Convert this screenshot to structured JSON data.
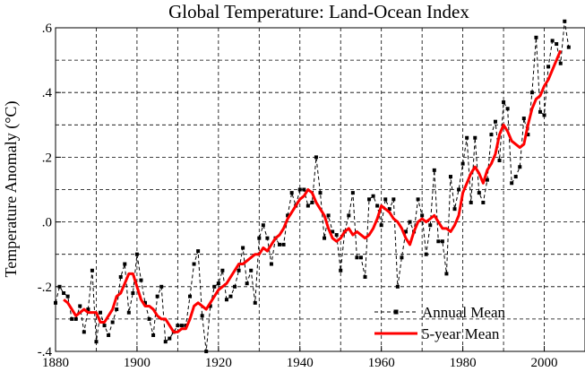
{
  "chart_data": {
    "type": "line",
    "title": "Global Temperature: Land-Ocean Index",
    "xlabel": "",
    "ylabel": "Temperature Anomaly (°C)",
    "xlim": [
      1880,
      2010
    ],
    "ylim": [
      -0.4,
      0.6
    ],
    "x_ticks": [
      1880,
      1900,
      1920,
      1940,
      1960,
      1980,
      2000
    ],
    "y_ticks": [
      -0.4,
      -0.2,
      0.0,
      0.2,
      0.4,
      0.6
    ],
    "x_tick_labels": [
      "1880",
      "1900",
      "1920",
      "1940",
      "1960",
      "1980",
      "2000"
    ],
    "y_tick_labels": [
      "-.4",
      "-.2",
      ".0",
      ".2",
      ".4",
      ".6"
    ],
    "grid": true,
    "legend_position": "bottom-right",
    "series": [
      {
        "name": "Annual Mean",
        "style": "dashed-with-square-markers",
        "color": "#000000",
        "x": [
          1880,
          1881,
          1882,
          1883,
          1884,
          1885,
          1886,
          1887,
          1888,
          1889,
          1890,
          1891,
          1892,
          1893,
          1894,
          1895,
          1896,
          1897,
          1898,
          1899,
          1900,
          1901,
          1902,
          1903,
          1904,
          1905,
          1906,
          1907,
          1908,
          1909,
          1910,
          1911,
          1912,
          1913,
          1914,
          1915,
          1916,
          1917,
          1918,
          1919,
          1920,
          1921,
          1922,
          1923,
          1924,
          1925,
          1926,
          1927,
          1928,
          1929,
          1930,
          1931,
          1932,
          1933,
          1934,
          1935,
          1936,
          1937,
          1938,
          1939,
          1940,
          1941,
          1942,
          1943,
          1944,
          1945,
          1946,
          1947,
          1948,
          1949,
          1950,
          1951,
          1952,
          1953,
          1954,
          1955,
          1956,
          1957,
          1958,
          1959,
          1960,
          1961,
          1962,
          1963,
          1964,
          1965,
          1966,
          1967,
          1968,
          1969,
          1970,
          1971,
          1972,
          1973,
          1974,
          1975,
          1976,
          1977,
          1978,
          1979,
          1980,
          1981,
          1982,
          1983,
          1984,
          1985,
          1986,
          1987,
          1988,
          1989,
          1990,
          1991,
          1992,
          1993,
          1994,
          1995,
          1996,
          1997,
          1998,
          1999,
          2000,
          2001,
          2002,
          2003,
          2004,
          2005,
          2006
        ],
        "values": [
          -0.25,
          -0.2,
          -0.22,
          -0.23,
          -0.3,
          -0.3,
          -0.26,
          -0.34,
          -0.27,
          -0.15,
          -0.37,
          -0.28,
          -0.32,
          -0.35,
          -0.31,
          -0.27,
          -0.17,
          -0.13,
          -0.28,
          -0.22,
          -0.1,
          -0.18,
          -0.25,
          -0.3,
          -0.35,
          -0.23,
          -0.2,
          -0.37,
          -0.36,
          -0.34,
          -0.32,
          -0.32,
          -0.32,
          -0.23,
          -0.13,
          -0.09,
          -0.29,
          -0.4,
          -0.26,
          -0.2,
          -0.19,
          -0.15,
          -0.24,
          -0.23,
          -0.2,
          -0.15,
          -0.08,
          -0.19,
          -0.15,
          -0.25,
          -0.05,
          -0.01,
          -0.05,
          -0.13,
          -0.05,
          -0.07,
          -0.07,
          0.02,
          0.09,
          0.05,
          0.1,
          0.1,
          0.05,
          0.06,
          0.2,
          0.09,
          -0.05,
          0.02,
          -0.03,
          -0.04,
          -0.15,
          -0.03,
          0.02,
          0.09,
          -0.11,
          -0.11,
          -0.17,
          0.07,
          0.08,
          0.05,
          -0.01,
          0.07,
          0.04,
          0.07,
          -0.2,
          -0.11,
          -0.03,
          0.0,
          -0.03,
          0.07,
          0.02,
          -0.1,
          -0.01,
          0.16,
          -0.06,
          -0.06,
          -0.16,
          0.14,
          0.04,
          0.1,
          0.18,
          0.26,
          0.06,
          0.26,
          0.09,
          0.06,
          0.13,
          0.27,
          0.31,
          0.19,
          0.37,
          0.35,
          0.12,
          0.14,
          0.17,
          0.32,
          0.27,
          0.4,
          0.57,
          0.34,
          0.33,
          0.48,
          0.56,
          0.55,
          0.49,
          0.62,
          0.54
        ]
      },
      {
        "name": "5-year Mean",
        "style": "thick-solid",
        "color": "#ff0000",
        "x": [
          1882,
          1883,
          1884,
          1885,
          1886,
          1887,
          1888,
          1889,
          1890,
          1891,
          1892,
          1893,
          1894,
          1895,
          1896,
          1897,
          1898,
          1899,
          1900,
          1901,
          1902,
          1903,
          1904,
          1905,
          1906,
          1907,
          1908,
          1909,
          1910,
          1911,
          1912,
          1913,
          1914,
          1915,
          1916,
          1917,
          1918,
          1919,
          1920,
          1921,
          1922,
          1923,
          1924,
          1925,
          1926,
          1927,
          1928,
          1929,
          1930,
          1931,
          1932,
          1933,
          1934,
          1935,
          1936,
          1937,
          1938,
          1939,
          1940,
          1941,
          1942,
          1943,
          1944,
          1945,
          1946,
          1947,
          1948,
          1949,
          1950,
          1951,
          1952,
          1953,
          1954,
          1955,
          1956,
          1957,
          1958,
          1959,
          1960,
          1961,
          1962,
          1963,
          1964,
          1965,
          1966,
          1967,
          1968,
          1969,
          1970,
          1971,
          1972,
          1973,
          1974,
          1975,
          1976,
          1977,
          1978,
          1979,
          1980,
          1981,
          1982,
          1983,
          1984,
          1985,
          1986,
          1987,
          1988,
          1989,
          1990,
          1991,
          1992,
          1993,
          1994,
          1995,
          1996,
          1997,
          1998,
          1999,
          2000,
          2001,
          2002,
          2003,
          2004
        ],
        "values": [
          -0.24,
          -0.25,
          -0.27,
          -0.29,
          -0.28,
          -0.27,
          -0.28,
          -0.28,
          -0.28,
          -0.31,
          -0.31,
          -0.29,
          -0.27,
          -0.23,
          -0.22,
          -0.19,
          -0.16,
          -0.16,
          -0.2,
          -0.24,
          -0.26,
          -0.26,
          -0.27,
          -0.29,
          -0.3,
          -0.3,
          -0.32,
          -0.34,
          -0.34,
          -0.33,
          -0.33,
          -0.3,
          -0.26,
          -0.25,
          -0.26,
          -0.27,
          -0.25,
          -0.23,
          -0.21,
          -0.2,
          -0.19,
          -0.17,
          -0.15,
          -0.13,
          -0.13,
          -0.12,
          -0.11,
          -0.1,
          -0.1,
          -0.08,
          -0.09,
          -0.07,
          -0.05,
          -0.04,
          -0.02,
          0.01,
          0.03,
          0.05,
          0.07,
          0.08,
          0.1,
          0.09,
          0.06,
          0.04,
          0.02,
          -0.02,
          -0.05,
          -0.06,
          -0.05,
          -0.03,
          -0.02,
          -0.04,
          -0.03,
          -0.04,
          -0.05,
          -0.04,
          -0.02,
          0.01,
          0.05,
          0.04,
          0.03,
          0.01,
          0.0,
          -0.02,
          -0.05,
          -0.07,
          -0.03,
          0.0,
          0.01,
          0.0,
          0.01,
          0.02,
          0.0,
          -0.02,
          -0.02,
          -0.03,
          -0.01,
          0.02,
          0.09,
          0.12,
          0.15,
          0.17,
          0.15,
          0.12,
          0.16,
          0.18,
          0.21,
          0.27,
          0.3,
          0.28,
          0.25,
          0.24,
          0.23,
          0.24,
          0.3,
          0.35,
          0.38,
          0.39,
          0.42,
          0.44,
          0.47,
          0.5,
          0.53
        ]
      }
    ]
  }
}
